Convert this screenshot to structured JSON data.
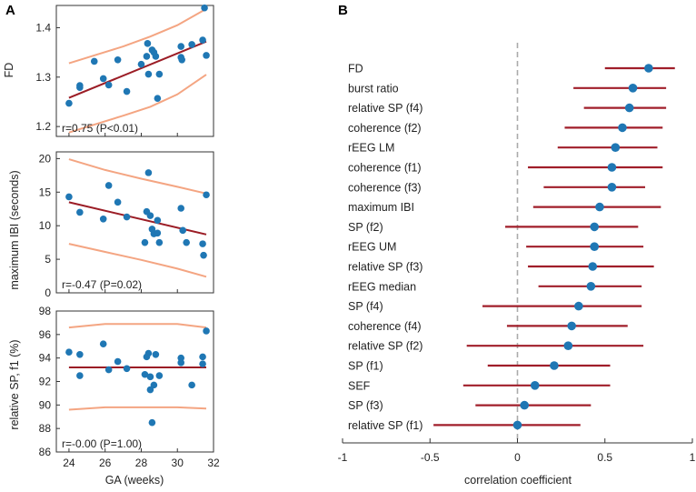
{
  "colors": {
    "point": "#1f77b4",
    "fit": "#9b1c25",
    "ci": "#f4a582",
    "forest_line": "#a01e2a",
    "zero_line": "#aaaaaa",
    "axis": "#333333"
  },
  "panels": {
    "a": "A",
    "b": "B"
  },
  "chart_data": [
    {
      "id": "fd",
      "type": "scatter",
      "ylabel": "FD",
      "xlim": [
        23.3,
        32
      ],
      "ylim": [
        1.18,
        1.445
      ],
      "yticks": [
        1.2,
        1.3,
        1.4
      ],
      "ytick_labels": [
        "1.2",
        "1.3",
        "1.4"
      ],
      "annotation": "r=0.75 (P<0.01)",
      "points": [
        [
          24.0,
          1.247
        ],
        [
          24.6,
          1.283
        ],
        [
          24.6,
          1.279
        ],
        [
          25.4,
          1.332
        ],
        [
          25.9,
          1.297
        ],
        [
          26.2,
          1.284
        ],
        [
          26.7,
          1.335
        ],
        [
          27.2,
          1.271
        ],
        [
          28.0,
          1.326
        ],
        [
          28.3,
          1.342
        ],
        [
          28.35,
          1.368
        ],
        [
          28.4,
          1.306
        ],
        [
          28.6,
          1.355
        ],
        [
          28.7,
          1.35
        ],
        [
          28.8,
          1.342
        ],
        [
          28.9,
          1.257
        ],
        [
          29.0,
          1.306
        ],
        [
          30.2,
          1.362
        ],
        [
          30.2,
          1.34
        ],
        [
          30.25,
          1.335
        ],
        [
          30.8,
          1.366
        ],
        [
          31.4,
          1.375
        ],
        [
          31.5,
          1.44
        ],
        [
          31.6,
          1.344
        ]
      ],
      "fit": [
        [
          24.0,
          1.258
        ],
        [
          31.6,
          1.372
        ]
      ],
      "ci_upper": [
        [
          24.0,
          1.328
        ],
        [
          25.5,
          1.345
        ],
        [
          27.0,
          1.362
        ],
        [
          28.5,
          1.382
        ],
        [
          30.0,
          1.405
        ],
        [
          31.6,
          1.438
        ]
      ],
      "ci_lower": [
        [
          24.0,
          1.188
        ],
        [
          25.5,
          1.205
        ],
        [
          27.0,
          1.222
        ],
        [
          28.5,
          1.24
        ],
        [
          30.0,
          1.265
        ],
        [
          31.6,
          1.305
        ]
      ]
    },
    {
      "id": "ibi",
      "type": "scatter",
      "ylabel": "maximum IBI (seconds)",
      "xlim": [
        23.3,
        32
      ],
      "ylim": [
        0,
        21
      ],
      "yticks": [
        0,
        5,
        10,
        15,
        20
      ],
      "ytick_labels": [
        "0",
        "5",
        "10",
        "15",
        "20"
      ],
      "annotation": "r=-0.47 (P=0.02)",
      "points": [
        [
          24.0,
          14.3
        ],
        [
          24.6,
          12.0
        ],
        [
          25.9,
          11.0
        ],
        [
          26.2,
          16.0
        ],
        [
          26.7,
          13.5
        ],
        [
          27.2,
          11.3
        ],
        [
          28.2,
          7.5
        ],
        [
          28.3,
          12.1
        ],
        [
          28.4,
          17.9
        ],
        [
          28.5,
          11.5
        ],
        [
          28.6,
          9.5
        ],
        [
          28.7,
          8.8
        ],
        [
          28.9,
          10.8
        ],
        [
          28.9,
          8.9
        ],
        [
          29.0,
          7.5
        ],
        [
          30.2,
          12.6
        ],
        [
          30.3,
          9.3
        ],
        [
          30.5,
          7.5
        ],
        [
          31.4,
          7.3
        ],
        [
          31.45,
          5.6
        ],
        [
          31.6,
          14.6
        ]
      ],
      "fit": [
        [
          24.0,
          13.5
        ],
        [
          31.6,
          8.7
        ]
      ],
      "ci_upper": [
        [
          24.0,
          19.9
        ],
        [
          26.0,
          18.3
        ],
        [
          28.0,
          17.0
        ],
        [
          30.0,
          15.8
        ],
        [
          31.6,
          14.8
        ]
      ],
      "ci_lower": [
        [
          24.0,
          7.3
        ],
        [
          26.0,
          6.1
        ],
        [
          28.0,
          4.9
        ],
        [
          30.0,
          3.6
        ],
        [
          31.6,
          2.4
        ]
      ]
    },
    {
      "id": "sp",
      "type": "scatter",
      "ylabel": "relative SP, f1 (%)",
      "xlim": [
        23.3,
        32
      ],
      "ylim": [
        86,
        98
      ],
      "yticks": [
        86,
        88,
        90,
        92,
        94,
        96,
        98
      ],
      "ytick_labels": [
        "86",
        "88",
        "90",
        "92",
        "94",
        "96",
        "98"
      ],
      "annotation": "r=-0.00 (P=1.00)",
      "points": [
        [
          24.0,
          94.5
        ],
        [
          24.6,
          92.5
        ],
        [
          24.6,
          94.3
        ],
        [
          25.9,
          95.2
        ],
        [
          26.2,
          93.0
        ],
        [
          26.7,
          93.7
        ],
        [
          27.2,
          93.1
        ],
        [
          28.2,
          92.6
        ],
        [
          28.3,
          94.1
        ],
        [
          28.4,
          94.4
        ],
        [
          28.5,
          92.4
        ],
        [
          28.5,
          91.3
        ],
        [
          28.6,
          88.5
        ],
        [
          28.7,
          91.7
        ],
        [
          28.8,
          94.3
        ],
        [
          29.0,
          92.5
        ],
        [
          30.2,
          93.6
        ],
        [
          30.2,
          94.0
        ],
        [
          30.8,
          91.7
        ],
        [
          31.4,
          93.5
        ],
        [
          31.4,
          94.1
        ],
        [
          31.6,
          96.3
        ]
      ],
      "fit": [
        [
          24.0,
          93.2
        ],
        [
          31.6,
          93.2
        ]
      ],
      "ci_upper": [
        [
          24.0,
          96.6
        ],
        [
          26.0,
          96.9
        ],
        [
          28.0,
          96.9
        ],
        [
          30.0,
          96.9
        ],
        [
          31.6,
          96.6
        ]
      ],
      "ci_lower": [
        [
          24.0,
          89.6
        ],
        [
          26.0,
          89.8
        ],
        [
          28.0,
          89.8
        ],
        [
          30.0,
          89.8
        ],
        [
          31.6,
          89.7
        ]
      ]
    },
    {
      "id": "forest",
      "type": "forest",
      "xlabel": "correlation coefficient",
      "xlim": [
        -1,
        1
      ],
      "xticks": [
        -1,
        -0.5,
        0,
        0.5,
        1
      ],
      "xtick_labels": [
        "-1",
        "-0.5",
        "0",
        "0.5",
        "1"
      ],
      "items": [
        {
          "label": "FD",
          "est": 0.75,
          "lo": 0.5,
          "hi": 0.9
        },
        {
          "label": "burst ratio",
          "est": 0.66,
          "lo": 0.32,
          "hi": 0.85
        },
        {
          "label": "relative SP (f4)",
          "est": 0.64,
          "lo": 0.38,
          "hi": 0.85
        },
        {
          "label": "coherence (f2)",
          "est": 0.6,
          "lo": 0.27,
          "hi": 0.83
        },
        {
          "label": "rEEG LM",
          "est": 0.56,
          "lo": 0.23,
          "hi": 0.8
        },
        {
          "label": "coherence (f1)",
          "est": 0.54,
          "lo": 0.06,
          "hi": 0.83
        },
        {
          "label": "coherence (f3)",
          "est": 0.54,
          "lo": 0.15,
          "hi": 0.73
        },
        {
          "label": "maximum IBI",
          "est": 0.47,
          "lo": 0.09,
          "hi": 0.82
        },
        {
          "label": "SP (f2)",
          "est": 0.44,
          "lo": -0.07,
          "hi": 0.69
        },
        {
          "label": "rEEG UM",
          "est": 0.44,
          "lo": 0.05,
          "hi": 0.72
        },
        {
          "label": "relative SP (f3)",
          "est": 0.43,
          "lo": 0.06,
          "hi": 0.78
        },
        {
          "label": "rEEG median",
          "est": 0.42,
          "lo": 0.12,
          "hi": 0.71
        },
        {
          "label": "SP (f4)",
          "est": 0.35,
          "lo": -0.2,
          "hi": 0.71
        },
        {
          "label": "coherence (f4)",
          "est": 0.31,
          "lo": -0.06,
          "hi": 0.63
        },
        {
          "label": "relative SP (f2)",
          "est": 0.29,
          "lo": -0.29,
          "hi": 0.72
        },
        {
          "label": "SP (f1)",
          "est": 0.21,
          "lo": -0.17,
          "hi": 0.53
        },
        {
          "label": "SEF",
          "est": 0.1,
          "lo": -0.31,
          "hi": 0.53
        },
        {
          "label": "SP (f3)",
          "est": 0.04,
          "lo": -0.24,
          "hi": 0.42
        },
        {
          "label": "relative SP (f1)",
          "est": 0.0,
          "lo": -0.48,
          "hi": 0.36
        }
      ]
    }
  ],
  "shared_x": {
    "xlabel": "GA (weeks)",
    "xticks": [
      24,
      26,
      28,
      30,
      32
    ],
    "xtick_labels": [
      "24",
      "26",
      "28",
      "30",
      "32"
    ]
  }
}
